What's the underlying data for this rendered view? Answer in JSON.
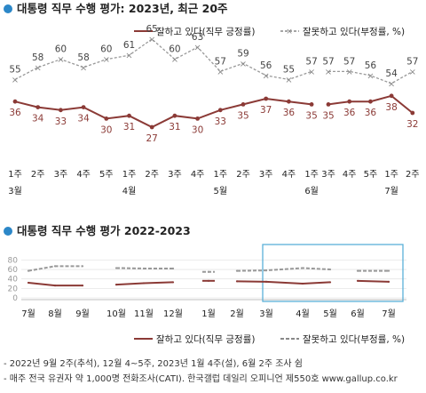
{
  "top": {
    "title": "대통령 직무 수행 평가: 2023년, 최근 20주",
    "legend_pos": "잘하고 있다(직무 긍정률)",
    "legend_neg": "잘못하고 있다(부정률, %)",
    "weeks": [
      "1주",
      "2주",
      "3주",
      "4주",
      "5주",
      "1주",
      "2주",
      "3주",
      "4주",
      "1주",
      "2주",
      "3주",
      "4주",
      "1주",
      "3주",
      "4주",
      "5주",
      "1주",
      "2주"
    ],
    "months": [
      {
        "label": "3월",
        "at": 0
      },
      {
        "label": "4월",
        "at": 5
      },
      {
        "label": "5월",
        "at": 9
      },
      {
        "label": "6월",
        "at": 13
      },
      {
        "label": "7월",
        "at": 17
      }
    ],
    "colors": {
      "positive": "#8b3a36",
      "negative": "#888888"
    }
  },
  "bottom": {
    "title": "대통령 직무 수행 평가 2022-2023",
    "y_ticks": [
      "80",
      "60",
      "40",
      "20",
      "0"
    ],
    "months": [
      "7월",
      "8월",
      "9월",
      "10월",
      "11월",
      "12월",
      "1월",
      "2월",
      "3월",
      "4월",
      "5월",
      "6월",
      "7월"
    ],
    "legend_pos": "잘하고 있다(직무 긍정률)",
    "legend_neg": "잘못하고 있다(부정률, %)"
  },
  "footnotes": [
    "- 2022년 9월 2주(추석), 12월 4~5주, 2023년 1월 4주(설), 6월 2주 조사 쉼",
    "- 매주 전국 유권자 약 1,000명 전화조사(CATI). 한국갤럽 데일리 오피니언 제550호 www.gallup.co.kr"
  ],
  "chart_data": [
    {
      "type": "line",
      "title": "대통령 직무 수행 평가: 2023년, 최근 20주",
      "categories": [
        "3월 1주",
        "3월 2주",
        "3월 3주",
        "3월 4주",
        "3월 5주",
        "4월 1주",
        "4월 2주",
        "4월 3주",
        "4월 4주",
        "5월 1주",
        "5월 2주",
        "5월 3주",
        "5월 4주",
        "6월 1주",
        "6월 3주",
        "6월 4주",
        "6월 5주",
        "7월 1주",
        "7월 2주"
      ],
      "series": [
        {
          "name": "잘하고 있다(직무 긍정률)",
          "values": [
            36,
            34,
            33,
            34,
            30,
            31,
            27,
            31,
            30,
            33,
            35,
            37,
            36,
            35,
            35,
            36,
            36,
            38,
            32
          ]
        },
        {
          "name": "잘못하고 있다(부정률, %)",
          "values": [
            55,
            58,
            60,
            58,
            60,
            61,
            65,
            60,
            63,
            57,
            59,
            56,
            55,
            57,
            57,
            57,
            56,
            54,
            57
          ]
        }
      ],
      "gap_after_index": 13
    },
    {
      "type": "line",
      "title": "대통령 직무 수행 평가 2022-2023",
      "ylim": [
        0,
        80
      ],
      "categories": [
        "2022-07",
        "2022-08",
        "2022-09",
        "2022-10",
        "2022-11",
        "2022-12",
        "2023-01",
        "2023-02",
        "2023-03",
        "2023-04",
        "2023-05",
        "2023-06",
        "2023-07"
      ],
      "series": [
        {
          "name": "잘하고 있다(직무 긍정률)",
          "values": [
            32,
            26,
            26,
            28,
            31,
            33,
            36,
            35,
            34,
            30,
            33,
            36,
            34
          ]
        },
        {
          "name": "잘못하고 있다(부정률, %)",
          "values": [
            57,
            67,
            67,
            63,
            62,
            62,
            55,
            57,
            58,
            63,
            60,
            57,
            57
          ]
        }
      ],
      "highlight": "최근 20주"
    }
  ]
}
